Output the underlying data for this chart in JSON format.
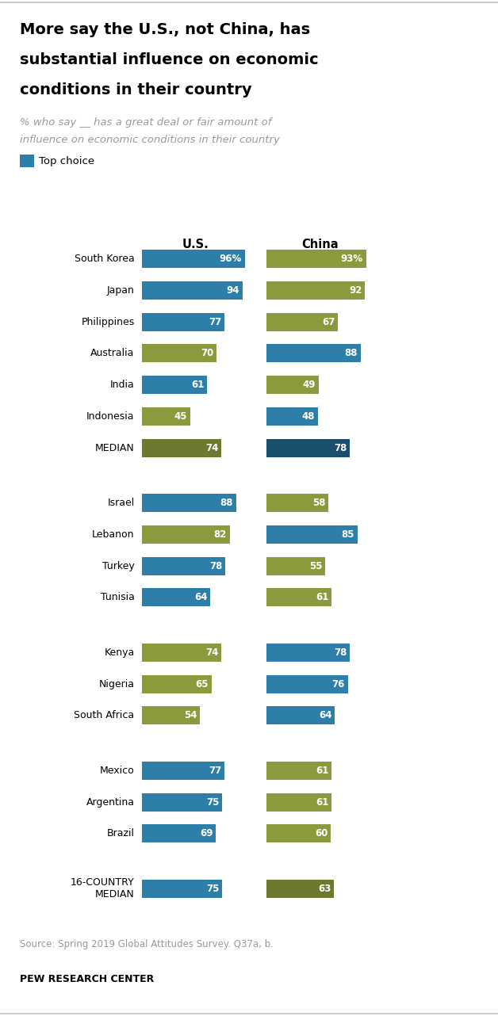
{
  "title_line1": "More say the U.S., not China, has",
  "title_line2": "substantial influence on economic",
  "title_line3": "conditions in their country",
  "subtitle_line1": "% who say __ has a great deal or fair amount of",
  "subtitle_line2": "influence on economic conditions in their country",
  "legend_label": "Top choice",
  "source": "Source: Spring 2019 Global Attitudes Survey. Q37a, b.",
  "footer": "PEW RESEARCH CENTER",
  "groups": [
    {
      "countries": [
        "South Korea",
        "Japan",
        "Philippines",
        "Australia",
        "India",
        "Indonesia",
        "MEDIAN"
      ],
      "us_values": [
        96,
        94,
        77,
        70,
        61,
        45,
        74
      ],
      "china_values": [
        93,
        92,
        67,
        88,
        49,
        48,
        78
      ],
      "us_colors": [
        "#2E7EAA",
        "#2E7EAA",
        "#2E7EAA",
        "#8A9A3C",
        "#2E7EAA",
        "#8A9A3C",
        "#6B7A2E"
      ],
      "china_colors": [
        "#8A9A3C",
        "#8A9A3C",
        "#8A9A3C",
        "#2E7EAA",
        "#8A9A3C",
        "#2E7EAA",
        "#1B4F6E"
      ],
      "us_pct_label": [
        "96%",
        "94",
        "77",
        "70",
        "61",
        "45",
        "74"
      ],
      "china_pct_label": [
        "93%",
        "92",
        "67",
        "88",
        "49",
        "48",
        "78"
      ]
    },
    {
      "countries": [
        "Israel",
        "Lebanon",
        "Turkey",
        "Tunisia"
      ],
      "us_values": [
        88,
        82,
        78,
        64
      ],
      "china_values": [
        58,
        85,
        55,
        61
      ],
      "us_colors": [
        "#2E7EAA",
        "#8A9A3C",
        "#2E7EAA",
        "#2E7EAA"
      ],
      "china_colors": [
        "#8A9A3C",
        "#2E7EAA",
        "#8A9A3C",
        "#8A9A3C"
      ],
      "us_pct_label": [
        "88",
        "82",
        "78",
        "64"
      ],
      "china_pct_label": [
        "58",
        "85",
        "55",
        "61"
      ]
    },
    {
      "countries": [
        "Kenya",
        "Nigeria",
        "South Africa"
      ],
      "us_values": [
        74,
        65,
        54
      ],
      "china_values": [
        78,
        76,
        64
      ],
      "us_colors": [
        "#8A9A3C",
        "#8A9A3C",
        "#8A9A3C"
      ],
      "china_colors": [
        "#2E7EAA",
        "#2E7EAA",
        "#2E7EAA"
      ],
      "us_pct_label": [
        "74",
        "65",
        "54"
      ],
      "china_pct_label": [
        "78",
        "76",
        "64"
      ]
    },
    {
      "countries": [
        "Mexico",
        "Argentina",
        "Brazil"
      ],
      "us_values": [
        77,
        75,
        69
      ],
      "china_values": [
        61,
        61,
        60
      ],
      "us_colors": [
        "#2E7EAA",
        "#2E7EAA",
        "#2E7EAA"
      ],
      "china_colors": [
        "#8A9A3C",
        "#8A9A3C",
        "#8A9A3C"
      ],
      "us_pct_label": [
        "77",
        "75",
        "69"
      ],
      "china_pct_label": [
        "61",
        "61",
        "60"
      ]
    },
    {
      "countries": [
        "16-COUNTRY\nMEDIAN"
      ],
      "us_values": [
        75
      ],
      "china_values": [
        63
      ],
      "us_colors": [
        "#2E7EAA"
      ],
      "china_colors": [
        "#6B7A2E"
      ],
      "us_pct_label": [
        "75"
      ],
      "china_pct_label": [
        "63"
      ]
    }
  ],
  "fig_width": 6.28,
  "fig_height": 12.82,
  "dpi": 100
}
